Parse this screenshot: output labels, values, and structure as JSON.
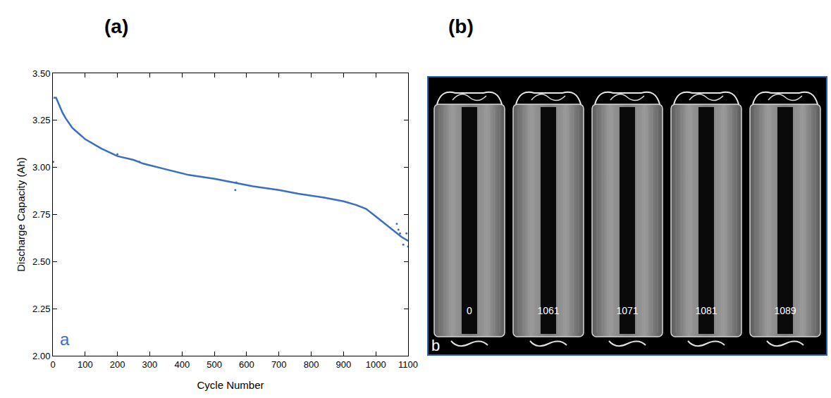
{
  "headings": [
    "(a)",
    "(b)"
  ],
  "chart_data": {
    "type": "line",
    "xlabel": "Cycle Number",
    "ylabel": "Discharge Capacity (Ah)",
    "xlim": [
      0,
      1100
    ],
    "ylim": [
      2,
      3.5
    ],
    "xticks": [
      0,
      100,
      200,
      300,
      400,
      500,
      600,
      700,
      800,
      900,
      1000,
      1100
    ],
    "yticks": [
      {
        "value": 2,
        "label": "2.00"
      },
      {
        "value": 2.25,
        "label": "2.25"
      },
      {
        "value": 2.5,
        "label": "2.50"
      },
      {
        "value": 2.75,
        "label": "2.75"
      },
      {
        "value": 3,
        "label": "3.00"
      },
      {
        "value": 3.25,
        "label": "3.25"
      },
      {
        "value": 3.5,
        "label": "3.50"
      }
    ],
    "grid": false,
    "annotations": [
      "a"
    ],
    "series": [
      {
        "type": "line",
        "color": "#3a6fbf",
        "x": [
          2,
          10,
          20,
          30,
          40,
          60,
          80,
          100,
          150,
          200,
          250,
          280,
          350,
          420,
          500,
          560,
          620,
          700,
          760,
          840,
          900,
          940,
          970,
          1000,
          1030,
          1060,
          1080,
          1100
        ],
        "values": [
          3.37,
          3.37,
          3.33,
          3.29,
          3.26,
          3.21,
          3.18,
          3.15,
          3.1,
          3.06,
          3.04,
          3.02,
          2.99,
          2.96,
          2.94,
          2.92,
          2.9,
          2.88,
          2.86,
          2.84,
          2.82,
          2.8,
          2.78,
          2.74,
          2.7,
          2.66,
          2.63,
          2.61
        ]
      },
      {
        "type": "scatter",
        "marker": "dot",
        "color": "#3a6fbf",
        "x": [
          1,
          200,
          268,
          565,
          568,
          1065,
          1070,
          1075,
          1085,
          1095,
          1100
        ],
        "values": [
          3.03,
          3.07,
          3.03,
          2.88,
          2.92,
          2.7,
          2.67,
          2.65,
          2.59,
          2.65,
          2.58
        ]
      }
    ]
  },
  "ct_images": {
    "letter": "b",
    "labels": [
      0,
      1061,
      1071,
      1081,
      1089
    ]
  }
}
